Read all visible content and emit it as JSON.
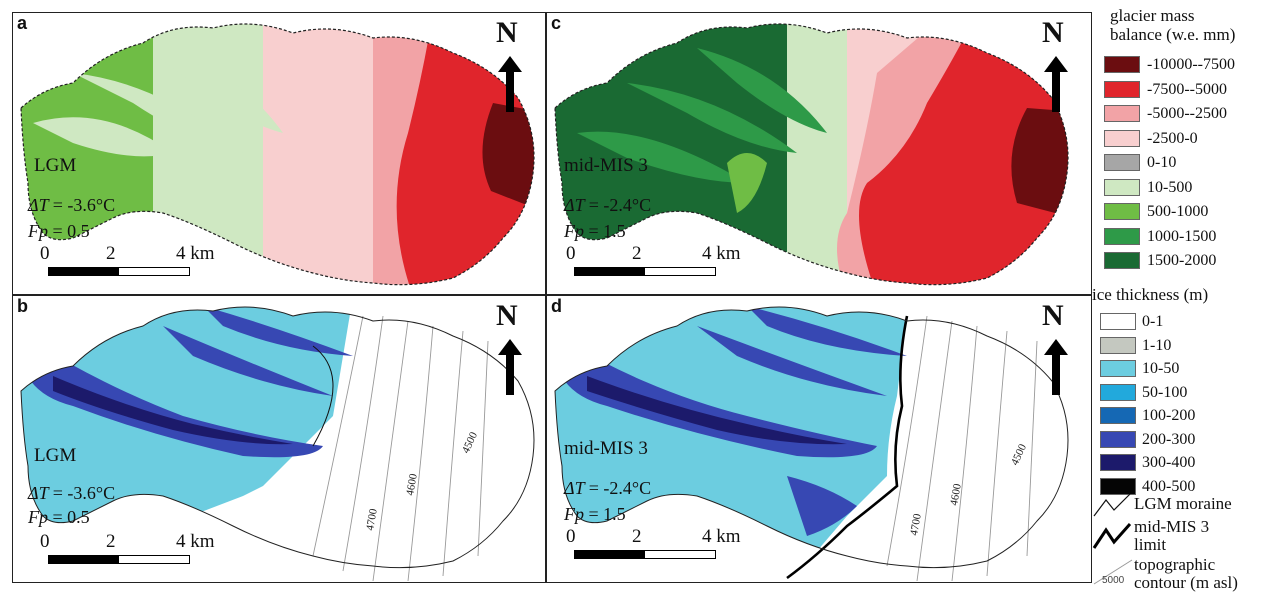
{
  "panels": [
    {
      "id": "a",
      "period": "LGM",
      "delta_t": "= -3.6°C",
      "fp": "= 0.5",
      "type": "mass_balance"
    },
    {
      "id": "b",
      "period": "LGM",
      "delta_t": "= -3.6°C",
      "fp": "= 0.5",
      "type": "ice_thickness"
    },
    {
      "id": "c",
      "period": "mid-MIS 3",
      "delta_t": "= -2.4°C",
      "fp": "= 1.5",
      "type": "mass_balance"
    },
    {
      "id": "d",
      "period": "mid-MIS 3",
      "delta_t": "= -2.4°C",
      "fp": "= 1.5",
      "type": "ice_thickness"
    }
  ],
  "north_label": "N",
  "dt_symbol": "ΔT",
  "fp_symbol": "Fp",
  "scale": {
    "ticks": [
      "0",
      "2",
      "4 km"
    ]
  },
  "contours": [
    "4500",
    "4600",
    "4700"
  ],
  "legend": {
    "mass_balance_title_1": "glacier mass",
    "mass_balance_title_2": "balance (w.e. mm)",
    "mass_balance": [
      {
        "label": "-10000--7500",
        "color": "#6b0d10"
      },
      {
        "label": "-7500--5000",
        "color": "#e0252c"
      },
      {
        "label": "-5000--2500",
        "color": "#f2a3a6"
      },
      {
        "label": "-2500-0",
        "color": "#f8cfcf"
      },
      {
        "label": "0-10",
        "color": "#a6a6a6"
      },
      {
        "label": "10-500",
        "color": "#cfe8c2"
      },
      {
        "label": "500-1000",
        "color": "#6fbd45"
      },
      {
        "label": "1000-1500",
        "color": "#2e9a48"
      },
      {
        "label": "1500-2000",
        "color": "#1a6a33"
      }
    ],
    "ice_title": "ice thickness (m)",
    "ice": [
      {
        "label": "0-1",
        "color": "#ffffff"
      },
      {
        "label": "1-10",
        "color": "#c4c8c0"
      },
      {
        "label": "10-50",
        "color": "#6ccde0"
      },
      {
        "label": "50-100",
        "color": "#22a9dc"
      },
      {
        "label": "100-200",
        "color": "#1568b4"
      },
      {
        "label": "200-300",
        "color": "#3748b3"
      },
      {
        "label": "300-400",
        "color": "#1c1a6b"
      },
      {
        "label": "400-500",
        "color": "#050505"
      }
    ],
    "moraine": "LGM moraine",
    "mis3_1": "mid-MIS 3",
    "mis3_2": "limit",
    "topo_1": "topographic",
    "topo_2": "contour (m asl)",
    "topo_value": "5000"
  }
}
